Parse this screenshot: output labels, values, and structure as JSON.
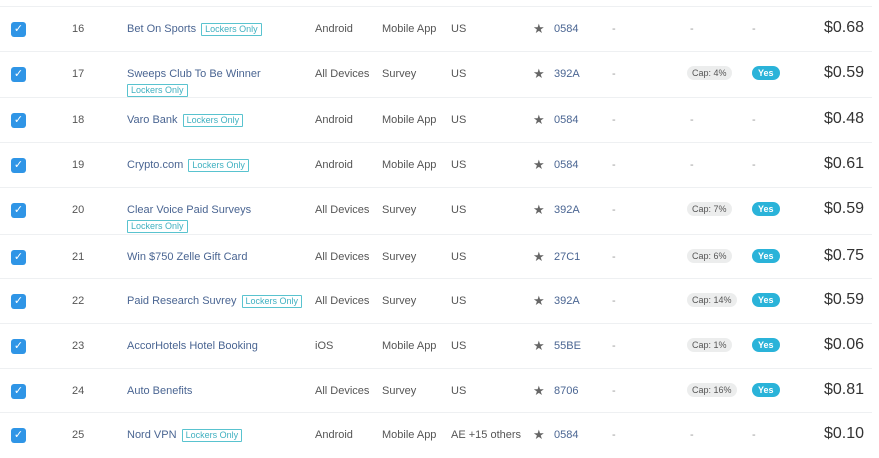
{
  "rows": [
    {
      "num": "16",
      "name": "Bet On Sports",
      "badge": "Lockers Only",
      "badge_newline": false,
      "device": "Android",
      "type": "Mobile App",
      "country": "US",
      "offer_id": "0584",
      "col1": "-",
      "cap": null,
      "col_cap_empty": "-",
      "incent": null,
      "col_incent_empty": "-",
      "price": "$0.68",
      "checked": true
    },
    {
      "num": "17",
      "name": "Sweeps Club To Be Winner",
      "badge": "Lockers Only",
      "badge_newline": true,
      "device": "All Devices",
      "type": "Survey",
      "country": "US",
      "offer_id": "392A",
      "col1": "-",
      "cap": "Cap: 4%",
      "incent": "Yes",
      "price": "$0.59",
      "checked": true
    },
    {
      "num": "18",
      "name": "Varo Bank",
      "badge": "Lockers Only",
      "badge_newline": false,
      "device": "Android",
      "type": "Mobile App",
      "country": "US",
      "offer_id": "0584",
      "col1": "-",
      "cap": null,
      "col_cap_empty": "-",
      "incent": null,
      "col_incent_empty": "-",
      "price": "$0.48",
      "checked": true
    },
    {
      "num": "19",
      "name": "Crypto.com",
      "badge": "Lockers Only",
      "badge_newline": false,
      "device": "Android",
      "type": "Mobile App",
      "country": "US",
      "offer_id": "0584",
      "col1": "-",
      "cap": null,
      "col_cap_empty": "-",
      "incent": null,
      "col_incent_empty": "-",
      "price": "$0.61",
      "checked": true
    },
    {
      "num": "20",
      "name": "Clear Voice Paid Surveys",
      "badge": "Lockers Only",
      "badge_newline": true,
      "device": "All Devices",
      "type": "Survey",
      "country": "US",
      "offer_id": "392A",
      "col1": "-",
      "cap": "Cap: 7%",
      "incent": "Yes",
      "price": "$0.59",
      "checked": true
    },
    {
      "num": "21",
      "name": "Win $750 Zelle Gift Card",
      "badge": null,
      "device": "All Devices",
      "type": "Survey",
      "country": "US",
      "offer_id": "27C1",
      "col1": "-",
      "cap": "Cap: 6%",
      "incent": "Yes",
      "price": "$0.75",
      "checked": true
    },
    {
      "num": "22",
      "name": "Paid Research Suvrey",
      "badge": "Lockers Only",
      "badge_newline": false,
      "device": "All Devices",
      "type": "Survey",
      "country": "US",
      "offer_id": "392A",
      "col1": "-",
      "cap": "Cap: 14%",
      "incent": "Yes",
      "price": "$0.59",
      "checked": true
    },
    {
      "num": "23",
      "name": "AccorHotels Hotel Booking",
      "badge": null,
      "device": "iOS",
      "type": "Mobile App",
      "country": "US",
      "offer_id": "55BE",
      "col1": "-",
      "cap": "Cap: 1%",
      "incent": "Yes",
      "price": "$0.06",
      "checked": true
    },
    {
      "num": "24",
      "name": "Auto Benefits",
      "badge": null,
      "device": "All Devices",
      "type": "Survey",
      "country": "US",
      "offer_id": "8706",
      "col1": "-",
      "cap": "Cap: 16%",
      "incent": "Yes",
      "price": "$0.81",
      "checked": true
    },
    {
      "num": "25",
      "name": "Nord VPN",
      "badge": "Lockers Only",
      "badge_newline": false,
      "device": "Android",
      "type": "Mobile App",
      "country": "AE +15 others",
      "offer_id": "0584",
      "col1": "-",
      "cap": null,
      "col_cap_empty": "-",
      "incent": null,
      "col_incent_empty": "-",
      "price": "$0.10",
      "checked": true
    }
  ],
  "colors": {
    "checkbox": "#2f95e6",
    "link": "#4a6592",
    "badge": "#3fb0c0",
    "yes": "#2ab3d9"
  }
}
